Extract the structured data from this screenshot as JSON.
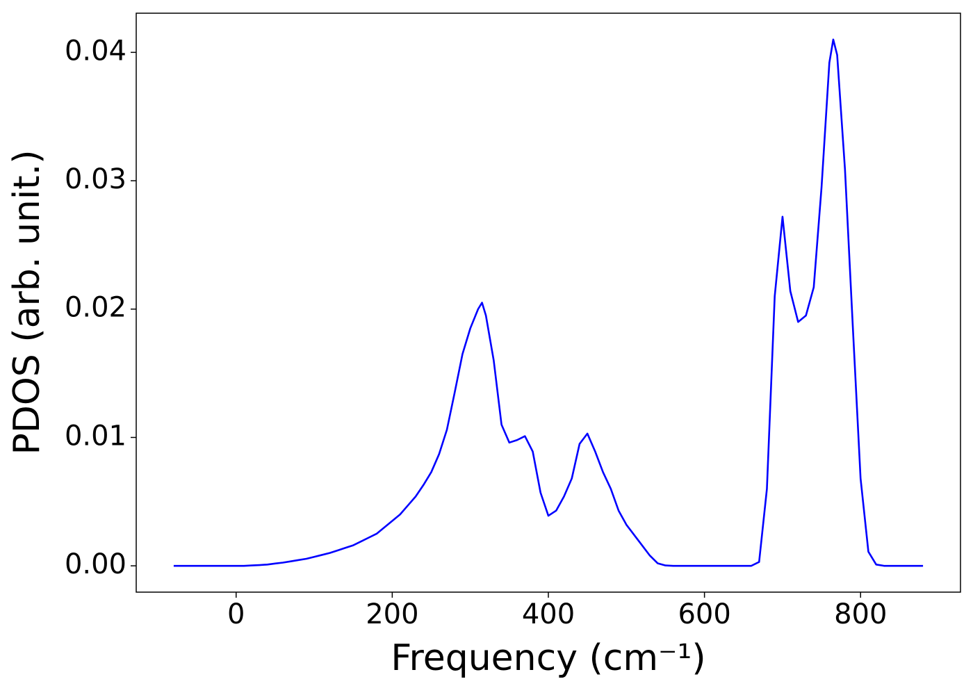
{
  "chart_data": {
    "type": "line",
    "xlabel": "Frequency (cm⁻¹)",
    "ylabel": "PDOS (arb. unit.)",
    "x": [
      -80,
      -70,
      -60,
      -50,
      -40,
      -30,
      -20,
      -10,
      0,
      10,
      20,
      30,
      40,
      50,
      60,
      70,
      80,
      90,
      100,
      110,
      120,
      130,
      140,
      150,
      160,
      170,
      180,
      190,
      200,
      210,
      220,
      230,
      240,
      250,
      260,
      270,
      280,
      290,
      300,
      310,
      315,
      320,
      330,
      340,
      350,
      360,
      370,
      380,
      390,
      400,
      410,
      420,
      430,
      440,
      450,
      460,
      470,
      480,
      490,
      500,
      510,
      520,
      530,
      540,
      550,
      560,
      570,
      580,
      590,
      600,
      610,
      620,
      630,
      640,
      650,
      660,
      670,
      680,
      690,
      700,
      710,
      720,
      730,
      740,
      750,
      760,
      765,
      770,
      780,
      790,
      800,
      810,
      820,
      830,
      840,
      850,
      860,
      870,
      880
    ],
    "series": [
      {
        "name": "PDOS",
        "color": "#0000ff",
        "values": [
          0,
          0,
          0,
          0,
          0,
          0,
          0,
          0,
          0,
          0,
          3e-05,
          6e-05,
          0.0001,
          0.00018,
          0.00025,
          0.00035,
          0.00045,
          0.00055,
          0.0007,
          0.00085,
          0.001,
          0.0012,
          0.0014,
          0.0016,
          0.0019,
          0.0022,
          0.0025,
          0.003,
          0.0035,
          0.004,
          0.0047,
          0.0054,
          0.0063,
          0.0073,
          0.0087,
          0.0106,
          0.0135,
          0.0165,
          0.0185,
          0.02,
          0.0205,
          0.0195,
          0.016,
          0.011,
          0.0096,
          0.0098,
          0.0101,
          0.0089,
          0.0057,
          0.0039,
          0.0043,
          0.0054,
          0.0068,
          0.0095,
          0.0103,
          0.0089,
          0.0073,
          0.006,
          0.0043,
          0.0032,
          0.0024,
          0.0016,
          0.0008,
          0.0002,
          3e-05,
          0,
          0,
          0,
          0,
          0,
          0,
          0,
          0,
          0,
          0,
          0,
          0.0003,
          0.006,
          0.021,
          0.0272,
          0.0214,
          0.019,
          0.0195,
          0.0217,
          0.0295,
          0.0392,
          0.041,
          0.0398,
          0.0309,
          0.0187,
          0.0068,
          0.0011,
          0.0001,
          0,
          0,
          0,
          0,
          0,
          0
        ]
      }
    ],
    "xlim": [
      -128,
      928
    ],
    "ylim": [
      -0.00205,
      0.04305
    ],
    "xticks": [
      0,
      200,
      400,
      600,
      800
    ],
    "yticks": [
      {
        "value": 0,
        "label": "0.00"
      },
      0.01,
      0.02,
      0.03,
      0.04
    ],
    "grid": false
  }
}
